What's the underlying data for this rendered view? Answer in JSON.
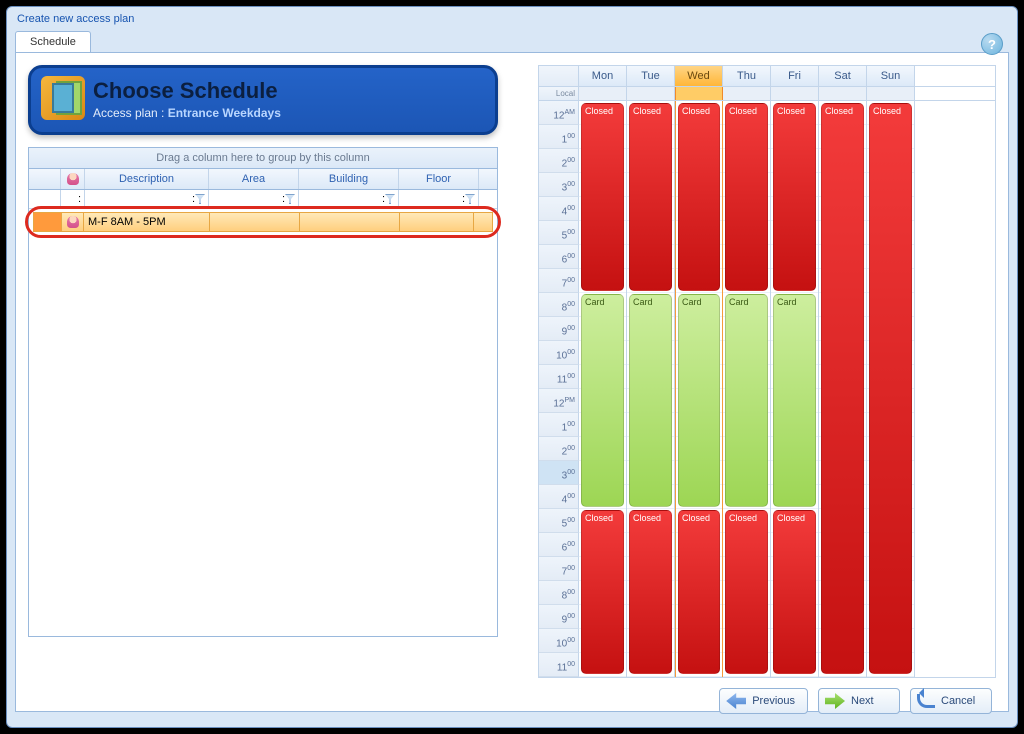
{
  "window_title": "Create new access plan",
  "tab_label": "Schedule",
  "header": {
    "title": "Choose Schedule",
    "sub_prefix": "Access plan : ",
    "plan_name": "Entrance Weekdays"
  },
  "grid": {
    "group_hint": "Drag a column here to group by this column",
    "columns": {
      "icon": "",
      "description": "Description",
      "area": "Area",
      "building": "Building",
      "floor": "Floor"
    },
    "row": {
      "description": "M-F 8AM - 5PM",
      "area": "",
      "building": "",
      "floor": ""
    }
  },
  "calendar": {
    "gutter_label": "Local",
    "days": [
      "Mon",
      "Tue",
      "Wed",
      "Thu",
      "Fri",
      "Sat",
      "Sun"
    ],
    "current_day_index": 2,
    "times": [
      "12AM",
      "1:00",
      "2:00",
      "3:00",
      "4:00",
      "5:00",
      "6:00",
      "7:00",
      "8:00",
      "9:00",
      "10:00",
      "11:00",
      "12PM",
      "1:00",
      "2:00",
      "3:00",
      "4:00",
      "5:00",
      "6:00",
      "7:00",
      "8:00",
      "9:00",
      "10:00",
      "11:00"
    ],
    "highlight_hour_index": 15,
    "labels": {
      "closed": "Closed",
      "card": "Card"
    }
  },
  "buttons": {
    "previous": "Previous",
    "next": "Next",
    "cancel": "Cancel"
  },
  "colors": {
    "closed": "#c51111",
    "card": "#9dd654",
    "window_bg": "#d9e7f6",
    "accent_blue": "#1c56b5",
    "highlight_orange": "#ffb638"
  }
}
